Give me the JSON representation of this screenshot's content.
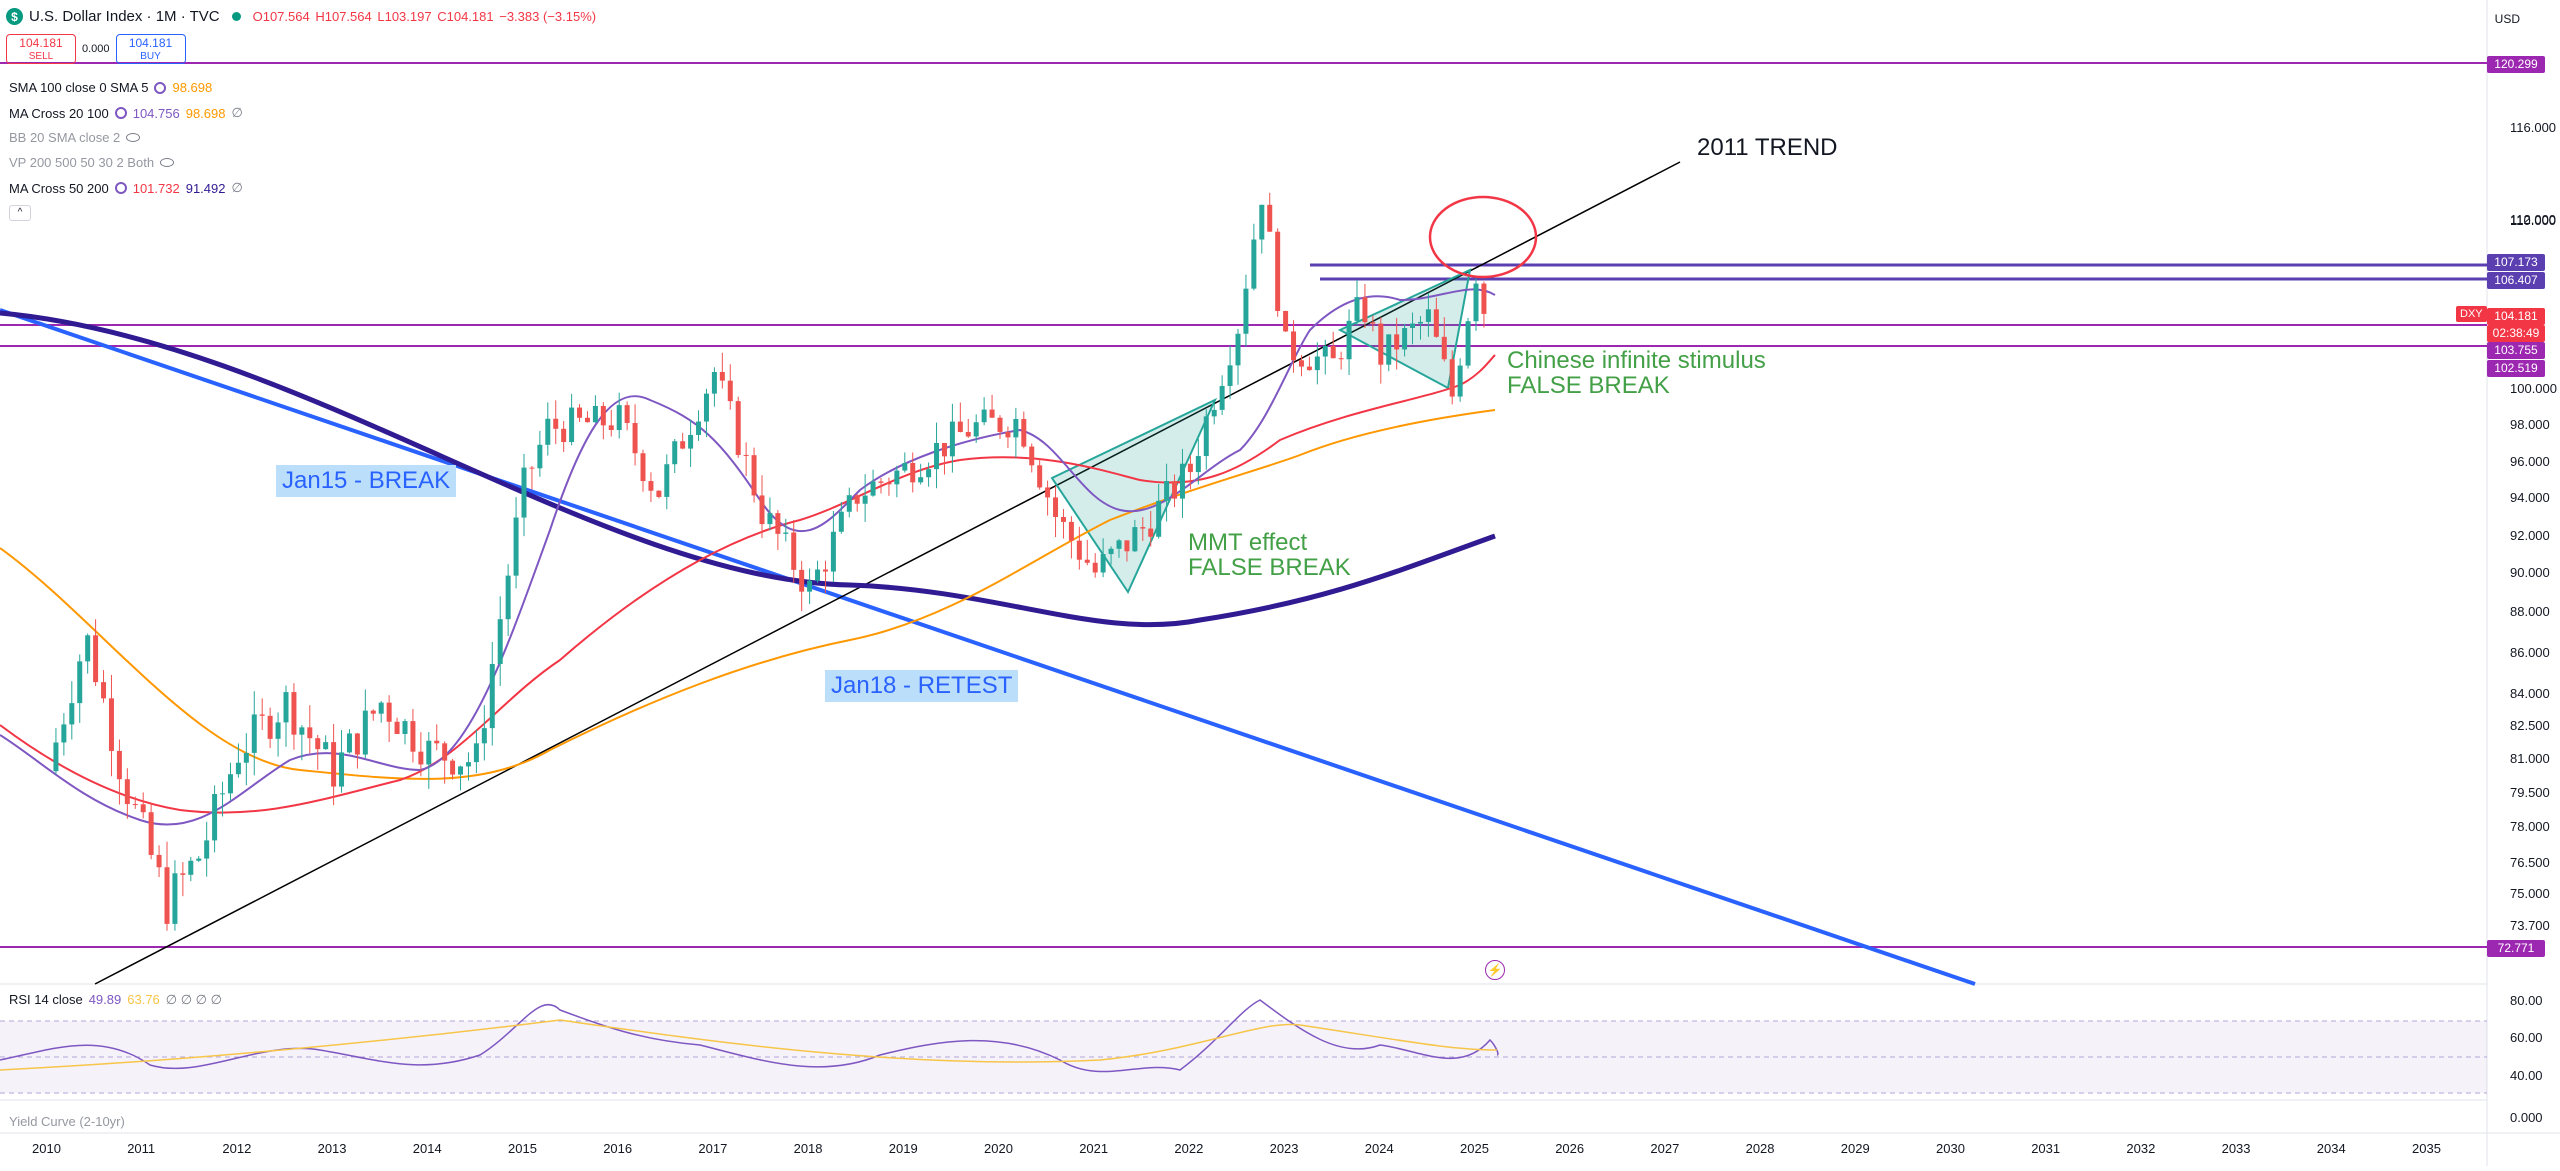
{
  "header": {
    "logo_glyph": "$",
    "title": "U.S. Dollar Index · 1M · TVC",
    "open": "O107.564",
    "high": "H107.564",
    "low": "L103.197",
    "close": "C104.181",
    "change": "−3.383 (−3.15%)",
    "currency": "USD",
    "sell_price": "104.181",
    "sell_label": "SELL",
    "spread": "0.000",
    "buy_price": "104.181",
    "buy_label": "BUY",
    "collapse_glyph": "^"
  },
  "indicators": [
    {
      "name": "SMA 100 close 0 SMA 5",
      "values": [
        "98.698"
      ],
      "colors": [
        "#ff9800"
      ],
      "muted": false,
      "icon": "gear-icon"
    },
    {
      "name": "MA Cross 20 100",
      "values": [
        "104.756",
        "98.698",
        "∅"
      ],
      "colors": [
        "#7e57c2",
        "#ff9800",
        "#787b86"
      ],
      "muted": false,
      "icon": "gear-icon"
    },
    {
      "name": "BB 20 SMA close 2",
      "values": [],
      "colors": [],
      "muted": true,
      "icon": "eye-off-icon"
    },
    {
      "name": "VP 200 500 50 30 2 Both",
      "values": [],
      "colors": [],
      "muted": true,
      "icon": "eye-off-icon"
    },
    {
      "name": "MA Cross 50 200",
      "values": [
        "101.732",
        "91.492",
        "∅"
      ],
      "colors": [
        "#f23645",
        "#311b92",
        "#787b86"
      ],
      "muted": false,
      "icon": "gear-icon"
    }
  ],
  "price_axis": {
    "ticks": [
      "116.000",
      "112.000",
      "110.000",
      "108.000",
      "104.000",
      "102.000",
      "100.000",
      "98.000",
      "96.000",
      "94.000",
      "92.000",
      "90.000",
      "88.000",
      "86.000",
      "84.000",
      "82.500",
      "81.000",
      "79.500",
      "78.000",
      "76.500",
      "75.000",
      "73.700"
    ],
    "labels": [
      {
        "text": "120.299",
        "color": "#9c27b0"
      },
      {
        "text": "107.173",
        "color": "#5b3fb0"
      },
      {
        "text": "106.407",
        "color": "#5b3fb0"
      },
      {
        "text": "104.181",
        "color": "#f23645"
      },
      {
        "text": "02:38:49",
        "color": "#f23645"
      },
      {
        "text": "103.755",
        "color": "#9c27b0"
      },
      {
        "text": "102.519",
        "color": "#9c27b0"
      },
      {
        "text": "72.771",
        "color": "#9c27b0"
      }
    ],
    "symbol_tag": "DXY"
  },
  "time_axis": [
    "2010",
    "2011",
    "2012",
    "2013",
    "2014",
    "2015",
    "2016",
    "2017",
    "2018",
    "2019",
    "2020",
    "2021",
    "2022",
    "2023",
    "2024",
    "2025",
    "2026",
    "2027",
    "2028",
    "2029",
    "2030",
    "2031",
    "2032",
    "2033",
    "2034",
    "2035"
  ],
  "annotations": {
    "trend_label": "2011 TREND",
    "jan15": "Jan15 - BREAK",
    "jan18": "Jan18 - RETEST",
    "mmt_line1": "MMT effect",
    "mmt_line2": "FALSE BREAK",
    "chinese_line1": "Chinese infinite stimulus",
    "chinese_line2": "FALSE BREAK",
    "flash_glyph": "⚡"
  },
  "rsi": {
    "name": "RSI 14 close",
    "value": "49.89",
    "ma_value": "63.76",
    "extras": "∅ ∅ ∅ ∅",
    "ticks": [
      "80.00",
      "60.00",
      "40.00"
    ]
  },
  "yield_curve": {
    "name": "Yield Curve (2-10yr)",
    "tick": "0.000"
  },
  "colors": {
    "up": "#26a69a",
    "down": "#ef5350",
    "ma20": "#7e57c2",
    "ma100": "#ff9800",
    "ma50": "#f23645",
    "ma200": "#311b92",
    "downtrend": "#2962ff",
    "hlines": "#9c27b0",
    "resistance": "#5b3fb0"
  },
  "chart_data": {
    "type": "candlestick",
    "title": "U.S. Dollar Index · 1M · TVC",
    "ylabel": "",
    "xlabel": "",
    "x_range": [
      2010.0,
      2035.5
    ],
    "ylim": [
      72.0,
      117.5
    ],
    "y_scale": "log",
    "grid": false,
    "candles_yearly_path": [
      {
        "year": 2010.0,
        "close": 79.5
      },
      {
        "year": 2010.4,
        "close": 86.5
      },
      {
        "year": 2010.8,
        "close": 79.0
      },
      {
        "year": 2011.25,
        "close": 73.2
      },
      {
        "year": 2011.6,
        "close": 75.5
      },
      {
        "year": 2012.0,
        "close": 80.5
      },
      {
        "year": 2012.5,
        "close": 83.0
      },
      {
        "year": 2013.0,
        "close": 79.5
      },
      {
        "year": 2013.5,
        "close": 83.0
      },
      {
        "year": 2014.0,
        "close": 80.5
      },
      {
        "year": 2014.5,
        "close": 80.0
      },
      {
        "year": 2015.0,
        "close": 95.0
      },
      {
        "year": 2015.25,
        "close": 98.5
      },
      {
        "year": 2016.0,
        "close": 99.0
      },
      {
        "year": 2016.4,
        "close": 94.5
      },
      {
        "year": 2017.0,
        "close": 102.0
      },
      {
        "year": 2017.5,
        "close": 93.5
      },
      {
        "year": 2018.0,
        "close": 89.0
      },
      {
        "year": 2018.5,
        "close": 94.5
      },
      {
        "year": 2019.0,
        "close": 96.0
      },
      {
        "year": 2019.7,
        "close": 98.5
      },
      {
        "year": 2020.2,
        "close": 99.0
      },
      {
        "year": 2020.6,
        "close": 93.0
      },
      {
        "year": 2021.0,
        "close": 90.0
      },
      {
        "year": 2021.5,
        "close": 92.5
      },
      {
        "year": 2022.0,
        "close": 96.0
      },
      {
        "year": 2022.5,
        "close": 105.0
      },
      {
        "year": 2022.75,
        "close": 114.0
      },
      {
        "year": 2023.0,
        "close": 103.5
      },
      {
        "year": 2023.5,
        "close": 102.5
      },
      {
        "year": 2023.8,
        "close": 106.5
      },
      {
        "year": 2024.0,
        "close": 103.0
      },
      {
        "year": 2024.5,
        "close": 105.5
      },
      {
        "year": 2024.75,
        "close": 100.5
      },
      {
        "year": 2025.0,
        "close": 108.5
      },
      {
        "year": 2025.15,
        "close": 104.181
      }
    ],
    "hlines": [
      120.299,
      107.173,
      106.407,
      103.755,
      102.519,
      72.771
    ],
    "series": [
      {
        "name": "MA Cross 20 100 (20)",
        "last": 104.756
      },
      {
        "name": "SMA 100",
        "last": 98.698
      },
      {
        "name": "MA Cross 50 200 (50)",
        "last": 101.732
      },
      {
        "name": "MA Cross 50 200 (200)",
        "last": 91.492
      }
    ]
  }
}
